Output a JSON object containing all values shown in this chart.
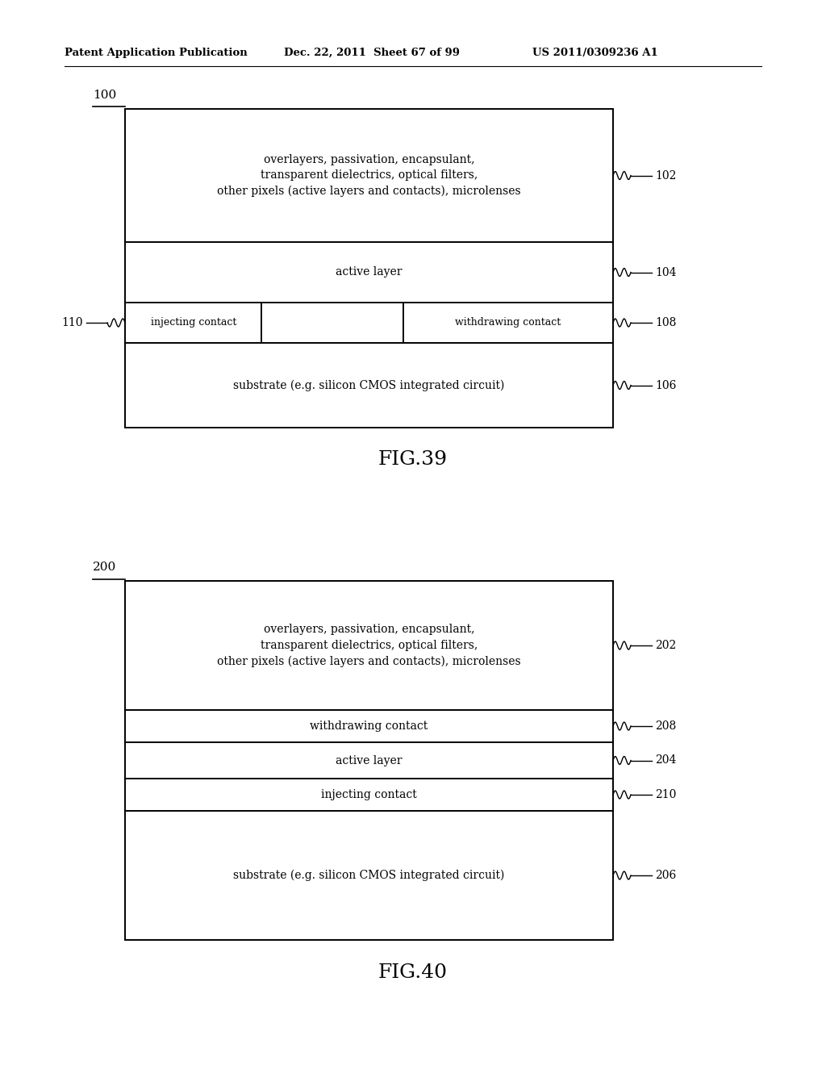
{
  "bg_color": "#ffffff",
  "header_text": "Patent Application Publication",
  "header_date": "Dec. 22, 2011  Sheet 67 of 99",
  "header_patent": "US 2011/0309236 A1",
  "fig1_label": "100",
  "fig1_caption": "FIG.39",
  "fig2_label": "200",
  "fig2_caption": "FIG.40",
  "lw": 1.4
}
